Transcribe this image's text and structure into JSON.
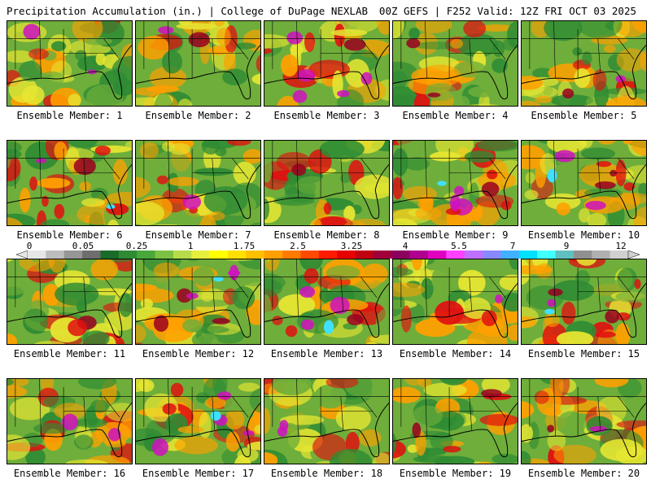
{
  "header": {
    "left_title": "Precipitation Accumulation (in.) | College of DuPage NEXLAB",
    "right_title": "00Z GEFS | F252 Valid: 12Z FRI OCT 03 2025"
  },
  "panels": [
    {
      "label": "Ensemble Member: 1"
    },
    {
      "label": "Ensemble Member: 2"
    },
    {
      "label": "Ensemble Member: 3"
    },
    {
      "label": "Ensemble Member: 4"
    },
    {
      "label": "Ensemble Member: 5"
    },
    {
      "label": "Ensemble Member: 6"
    },
    {
      "label": "Ensemble Member: 7"
    },
    {
      "label": "Ensemble Member: 8"
    },
    {
      "label": "Ensemble Member: 9"
    },
    {
      "label": "Ensemble Member: 10"
    },
    {
      "label": "Ensemble Member: 11"
    },
    {
      "label": "Ensemble Member: 12"
    },
    {
      "label": "Ensemble Member: 13"
    },
    {
      "label": "Ensemble Member: 14"
    },
    {
      "label": "Ensemble Member: 15"
    },
    {
      "label": "Ensemble Member: 16"
    },
    {
      "label": "Ensemble Member: 17"
    },
    {
      "label": "Ensemble Member: 18"
    },
    {
      "label": "Ensemble Member: 19"
    },
    {
      "label": "Ensemble Member: 20"
    }
  ],
  "colorbar": {
    "tick_labels": [
      "0",
      "0.05",
      "0.25",
      "1",
      "1.75",
      "2.5",
      "3.25",
      "4",
      "5.5",
      "7",
      "9",
      "12"
    ],
    "colors": [
      "#e6e6e6",
      "#bdbdbd",
      "#969696",
      "#6e6e6e",
      "#1a6b2a",
      "#2e8b34",
      "#4aa83a",
      "#7cc242",
      "#b6dc4a",
      "#e6f03c",
      "#ffff00",
      "#ffe000",
      "#ffc000",
      "#ffa000",
      "#ff7a00",
      "#ff4a00",
      "#ff1a00",
      "#e60000",
      "#c00010",
      "#a0003a",
      "#8c0060",
      "#b00090",
      "#e000c0",
      "#ff40ff",
      "#c070ff",
      "#8888ff",
      "#40b0ff",
      "#00e0ff",
      "#40ffff",
      "#60c0c0",
      "#909090",
      "#b0b0b0",
      "#d0d0d0"
    ]
  },
  "field_colors": {
    "dry_green": "#2e8b34",
    "light_green": "#6fae3a",
    "yellow": "#e6e632",
    "orange": "#ffa000",
    "red": "#e01010",
    "dark_red": "#9a0020",
    "magenta": "#d010c0",
    "cyan": "#40e0ff",
    "gray": "#808080"
  }
}
